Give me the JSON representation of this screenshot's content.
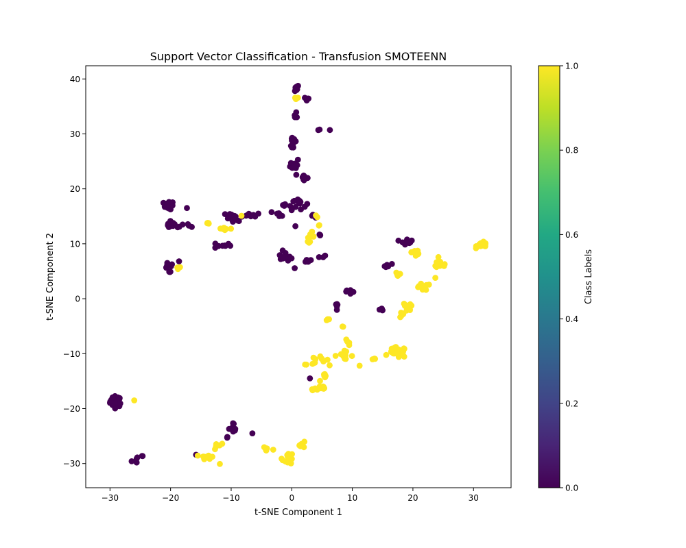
{
  "chart_data": {
    "type": "scatter",
    "title": "Support Vector Classification - Transfusion SMOTEENN",
    "xlabel": "t-SNE Component 1",
    "ylabel": "t-SNE Component 2",
    "xlim": [
      -34.0,
      36.2
    ],
    "ylim": [
      -34.4,
      42.4
    ],
    "xticks": [
      -30,
      -20,
      -10,
      0,
      10,
      20,
      30
    ],
    "yticks": [
      -30,
      -20,
      -10,
      0,
      10,
      20,
      30,
      40
    ],
    "grid": false,
    "colorbar": {
      "label": "Class Labels",
      "colormap": "viridis",
      "range": [
        0.0,
        1.0
      ],
      "ticks": [
        "0.0",
        "0.2",
        "0.4",
        "0.6",
        "0.8",
        "1.0"
      ]
    },
    "colors": {
      "class_0": "#440154",
      "class_1": "#fde725"
    },
    "clusters": [
      {
        "label": 0,
        "center": [
          -29,
          -18.7
        ],
        "spread": [
          0.8,
          0.8
        ],
        "n": 40
      },
      {
        "label": 0,
        "center": [
          -25.5,
          -29.5
        ],
        "spread": [
          0.9,
          1.0
        ],
        "n": 6
      },
      {
        "label": 1,
        "center": [
          -26,
          -18.5
        ],
        "spread": [
          0,
          0
        ],
        "n": 1
      },
      {
        "label": 0,
        "center": [
          -20.3,
          17.0
        ],
        "spread": [
          0.7,
          0.6
        ],
        "n": 20
      },
      {
        "label": 0,
        "center": [
          -19.5,
          13.4
        ],
        "spread": [
          1.4,
          0.5
        ],
        "n": 12
      },
      {
        "label": 0,
        "center": [
          -17.3,
          16.5
        ],
        "spread": [
          0,
          0
        ],
        "n": 1
      },
      {
        "label": 0,
        "center": [
          -17.0,
          13.2
        ],
        "spread": [
          0.4,
          0.4
        ],
        "n": 3
      },
      {
        "label": 0,
        "center": [
          -20.5,
          6.0
        ],
        "spread": [
          0.8,
          0.5
        ],
        "n": 9
      },
      {
        "label": 0,
        "center": [
          -20.0,
          4.8
        ],
        "spread": [
          0.4,
          0.2
        ],
        "n": 3
      },
      {
        "label": 0,
        "center": [
          -18.6,
          6.8
        ],
        "spread": [
          0,
          0
        ],
        "n": 1
      },
      {
        "label": 1,
        "center": [
          -18.6,
          5.6
        ],
        "spread": [
          0.3,
          0.1
        ],
        "n": 3
      },
      {
        "label": 1,
        "center": [
          -14,
          13.7
        ],
        "spread": [
          0.5,
          0.2
        ],
        "n": 4
      },
      {
        "label": 1,
        "center": [
          -11,
          12.8
        ],
        "spread": [
          1.2,
          0.4
        ],
        "n": 6
      },
      {
        "label": 0,
        "center": [
          -9.5,
          14.5
        ],
        "spread": [
          1.0,
          0.7
        ],
        "n": 10
      },
      {
        "label": 0,
        "center": [
          -6.5,
          15.3
        ],
        "spread": [
          1.5,
          0.4
        ],
        "n": 8
      },
      {
        "label": 0,
        "center": [
          -11,
          15.4
        ],
        "spread": [
          0,
          0
        ],
        "n": 1
      },
      {
        "label": 0,
        "center": [
          -11.5,
          9.7
        ],
        "spread": [
          1.2,
          0.5
        ],
        "n": 8
      },
      {
        "label": 1,
        "center": [
          -8.3,
          15.1
        ],
        "spread": [
          0,
          0
        ],
        "n": 1
      },
      {
        "label": 0,
        "center": [
          -2.5,
          15.5
        ],
        "spread": [
          0.6,
          0.4
        ],
        "n": 4
      },
      {
        "label": 0,
        "center": [
          -1.8,
          15.0
        ],
        "spread": [
          0.3,
          0.2
        ],
        "n": 2
      },
      {
        "label": 0,
        "center": [
          0.5,
          38.3
        ],
        "spread": [
          0.6,
          0.5
        ],
        "n": 10
      },
      {
        "label": 1,
        "center": [
          0.8,
          36.5
        ],
        "spread": [
          0.4,
          0.3
        ],
        "n": 4
      },
      {
        "label": 0,
        "center": [
          2.3,
          36.3
        ],
        "spread": [
          0.6,
          0.4
        ],
        "n": 4
      },
      {
        "label": 0,
        "center": [
          0.8,
          33.5
        ],
        "spread": [
          0.5,
          0.7
        ],
        "n": 4
      },
      {
        "label": 0,
        "center": [
          4.4,
          30.7
        ],
        "spread": [
          0.3,
          0.3
        ],
        "n": 2
      },
      {
        "label": 0,
        "center": [
          6.3,
          30.7
        ],
        "spread": [
          0,
          0
        ],
        "n": 1
      },
      {
        "label": 0,
        "center": [
          0.3,
          28.5
        ],
        "spread": [
          0.5,
          1.3
        ],
        "n": 14
      },
      {
        "label": 0,
        "center": [
          0.5,
          24.5
        ],
        "spread": [
          0.6,
          0.9
        ],
        "n": 10
      },
      {
        "label": 0,
        "center": [
          2.0,
          22.0
        ],
        "spread": [
          0.6,
          0.8
        ],
        "n": 8
      },
      {
        "label": 0,
        "center": [
          0.8,
          17.5
        ],
        "spread": [
          1.3,
          1.0
        ],
        "n": 14
      },
      {
        "label": 0,
        "center": [
          -1.2,
          17.0
        ],
        "spread": [
          0.3,
          0.3
        ],
        "n": 3
      },
      {
        "label": 0,
        "center": [
          0.6,
          13.2
        ],
        "spread": [
          0,
          0
        ],
        "n": 1
      },
      {
        "label": 0,
        "center": [
          3.3,
          15.0
        ],
        "spread": [
          0.4,
          0.2
        ],
        "n": 3
      },
      {
        "label": 1,
        "center": [
          4.2,
          15.0
        ],
        "spread": [
          0.2,
          0.2
        ],
        "n": 2
      },
      {
        "label": 1,
        "center": [
          4.5,
          13.3
        ],
        "spread": [
          0.2,
          0.2
        ],
        "n": 2
      },
      {
        "label": 0,
        "center": [
          4.7,
          11.6
        ],
        "spread": [
          0.3,
          0.2
        ],
        "n": 3
      },
      {
        "label": 1,
        "center": [
          3.0,
          11.3
        ],
        "spread": [
          0.6,
          0.7
        ],
        "n": 9
      },
      {
        "label": 0,
        "center": [
          -1.0,
          7.5
        ],
        "spread": [
          0.9,
          0.6
        ],
        "n": 10
      },
      {
        "label": 0,
        "center": [
          -1.5,
          8.8
        ],
        "spread": [
          0.2,
          0.2
        ],
        "n": 1
      },
      {
        "label": 0,
        "center": [
          2.5,
          6.9
        ],
        "spread": [
          1.0,
          0.3
        ],
        "n": 6
      },
      {
        "label": 0,
        "center": [
          5.0,
          7.7
        ],
        "spread": [
          0.4,
          0.3
        ],
        "n": 3
      },
      {
        "label": 0,
        "center": [
          0.5,
          5.6
        ],
        "spread": [
          0.2,
          0.1
        ],
        "n": 1
      },
      {
        "label": 0,
        "center": [
          9.0,
          1.3
        ],
        "spread": [
          0.7,
          0.4
        ],
        "n": 5
      },
      {
        "label": 0,
        "center": [
          7.5,
          -1.5
        ],
        "spread": [
          0.4,
          1.0
        ],
        "n": 5
      },
      {
        "label": 1,
        "center": [
          6.2,
          -3.9
        ],
        "spread": [
          0.5,
          0.2
        ],
        "n": 3
      },
      {
        "label": 1,
        "center": [
          8.4,
          -5.0
        ],
        "spread": [
          0.2,
          0.1
        ],
        "n": 2
      },
      {
        "label": 0,
        "center": [
          3.0,
          -14.5
        ],
        "spread": [
          0,
          0
        ],
        "n": 1
      },
      {
        "label": 1,
        "center": [
          9.2,
          -8.0
        ],
        "spread": [
          0.5,
          0.5
        ],
        "n": 5
      },
      {
        "label": 1,
        "center": [
          8.5,
          -10.3
        ],
        "spread": [
          1.3,
          0.6
        ],
        "n": 12
      },
      {
        "label": 1,
        "center": [
          4.5,
          -11.2
        ],
        "spread": [
          1.3,
          0.6
        ],
        "n": 10
      },
      {
        "label": 1,
        "center": [
          2.3,
          -12.1
        ],
        "spread": [
          0.3,
          0.2
        ],
        "n": 2
      },
      {
        "label": 1,
        "center": [
          5.5,
          -14.3
        ],
        "spread": [
          0.7,
          0.6
        ],
        "n": 6
      },
      {
        "label": 1,
        "center": [
          4.5,
          -16.3
        ],
        "spread": [
          1.2,
          0.5
        ],
        "n": 12
      },
      {
        "label": 1,
        "center": [
          11.2,
          -12.2
        ],
        "spread": [
          0,
          0
        ],
        "n": 1
      },
      {
        "label": 1,
        "center": [
          13.5,
          -10.9
        ],
        "spread": [
          0.6,
          0.2
        ],
        "n": 3
      },
      {
        "label": 0,
        "center": [
          14.8,
          -2.0
        ],
        "spread": [
          0.6,
          0.2
        ],
        "n": 3
      },
      {
        "label": 0,
        "center": [
          15.8,
          6.0
        ],
        "spread": [
          0.6,
          0.3
        ],
        "n": 6
      },
      {
        "label": 1,
        "center": [
          17.6,
          4.5
        ],
        "spread": [
          0.4,
          0.5
        ],
        "n": 5
      },
      {
        "label": 0,
        "center": [
          19.0,
          10.5
        ],
        "spread": [
          0.8,
          0.5
        ],
        "n": 10
      },
      {
        "label": 1,
        "center": [
          20.5,
          8.5
        ],
        "spread": [
          0.6,
          1.0
        ],
        "n": 10
      },
      {
        "label": 1,
        "center": [
          24.5,
          6.2
        ],
        "spread": [
          1.1,
          0.7
        ],
        "n": 14
      },
      {
        "label": 1,
        "center": [
          21.5,
          2.1
        ],
        "spread": [
          1.2,
          0.5
        ],
        "n": 10
      },
      {
        "label": 1,
        "center": [
          23.7,
          3.8
        ],
        "spread": [
          0,
          0
        ],
        "n": 1
      },
      {
        "label": 1,
        "center": [
          19.0,
          -1.7
        ],
        "spread": [
          0.8,
          0.9
        ],
        "n": 14
      },
      {
        "label": 1,
        "center": [
          18.2,
          -3.0
        ],
        "spread": [
          0.5,
          0.4
        ],
        "n": 5
      },
      {
        "label": 1,
        "center": [
          17.5,
          -9.8
        ],
        "spread": [
          1.2,
          0.8
        ],
        "n": 25
      },
      {
        "label": 1,
        "center": [
          31.5,
          9.8
        ],
        "spread": [
          0.8,
          0.4
        ],
        "n": 22
      },
      {
        "label": 0,
        "center": [
          -9.5,
          -23.5
        ],
        "spread": [
          0.7,
          0.8
        ],
        "n": 8
      },
      {
        "label": 0,
        "center": [
          -6.5,
          -24.5
        ],
        "spread": [
          0,
          0
        ],
        "n": 1
      },
      {
        "label": 0,
        "center": [
          -10.5,
          -25.3
        ],
        "spread": [
          0.3,
          0.2
        ],
        "n": 2
      },
      {
        "label": 1,
        "center": [
          -12.2,
          -26.8
        ],
        "spread": [
          0.5,
          1.0
        ],
        "n": 5
      },
      {
        "label": 1,
        "center": [
          -13.8,
          -28.8
        ],
        "spread": [
          1.0,
          0.4
        ],
        "n": 12
      },
      {
        "label": 1,
        "center": [
          -12,
          -30.3
        ],
        "spread": [
          0.2,
          0.2
        ],
        "n": 1
      },
      {
        "label": 0,
        "center": [
          -16.0,
          -28.5
        ],
        "spread": [
          0.2,
          0.2
        ],
        "n": 1
      },
      {
        "label": 1,
        "center": [
          -3.8,
          -27.3
        ],
        "spread": [
          0.8,
          0.4
        ],
        "n": 5
      },
      {
        "label": 1,
        "center": [
          -0.6,
          -29.0
        ],
        "spread": [
          0.8,
          0.9
        ],
        "n": 16
      },
      {
        "label": 1,
        "center": [
          1.8,
          -26.6
        ],
        "spread": [
          0.8,
          0.4
        ],
        "n": 7
      }
    ]
  }
}
